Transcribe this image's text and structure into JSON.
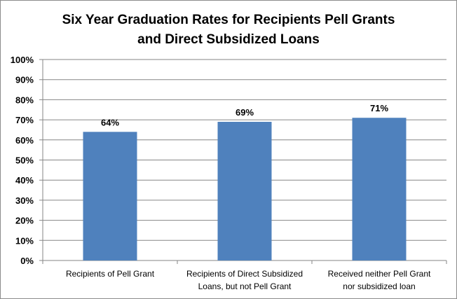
{
  "chart_data": {
    "type": "bar",
    "title": [
      "Six Year Graduation Rates for Recipients Pell Grants",
      "and Direct Subsidized Loans"
    ],
    "categories": [
      [
        "Recipients of Pell Grant"
      ],
      [
        "Recipients of Direct Subsidized",
        "Loans, but not Pell Grant"
      ],
      [
        "Received neither Pell Grant",
        "nor subsidized loan"
      ]
    ],
    "values": [
      64,
      69,
      71
    ],
    "data_labels": [
      "64%",
      "69%",
      "71%"
    ],
    "xlabel": "",
    "ylabel": "",
    "ylim": [
      0,
      100
    ],
    "yticks": [
      "0%",
      "10%",
      "20%",
      "30%",
      "40%",
      "50%",
      "60%",
      "70%",
      "80%",
      "90%",
      "100%"
    ],
    "grid": true,
    "legend": "none",
    "bar_color": "#4f81bd"
  }
}
